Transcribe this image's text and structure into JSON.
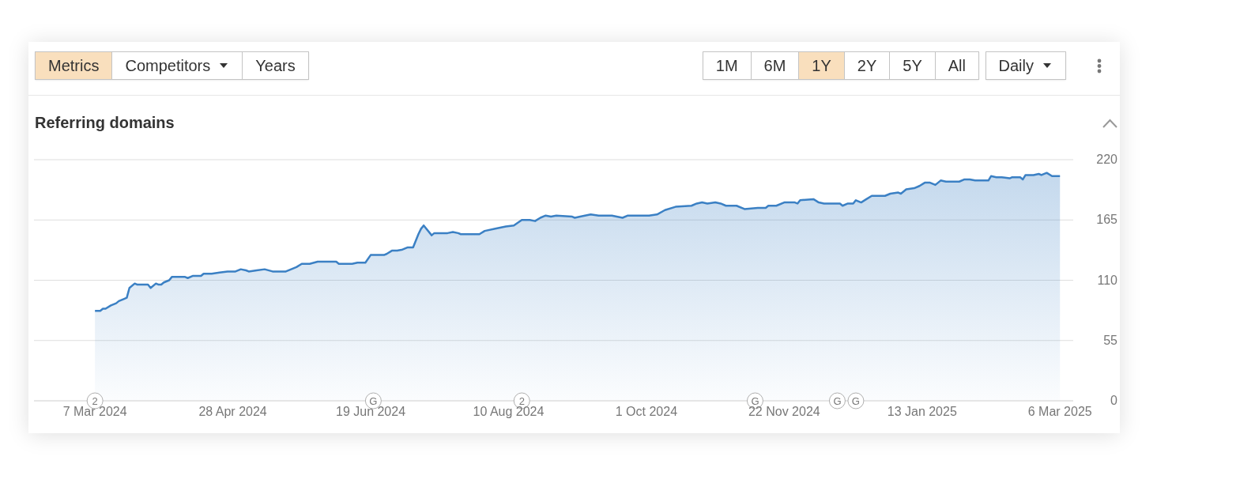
{
  "chart_data": {
    "type": "area",
    "title": "Referring domains",
    "x": [
      "2024-03-07",
      "2024-03-09",
      "2024-03-10",
      "2024-03-11",
      "2024-03-13",
      "2024-03-15",
      "2024-03-16",
      "2024-03-18",
      "2024-03-19",
      "2024-03-20",
      "2024-03-22",
      "2024-03-23",
      "2024-03-27",
      "2024-03-28",
      "2024-03-30",
      "2024-03-31",
      "2024-04-01",
      "2024-04-02",
      "2024-04-04",
      "2024-04-05",
      "2024-04-10",
      "2024-04-11",
      "2024-04-13",
      "2024-04-16",
      "2024-04-17",
      "2024-04-20",
      "2024-04-23",
      "2024-04-26",
      "2024-04-29",
      "2024-05-01",
      "2024-05-03",
      "2024-05-04",
      "2024-05-07",
      "2024-05-10",
      "2024-05-13",
      "2024-05-18",
      "2024-05-22",
      "2024-05-24",
      "2024-05-27",
      "2024-05-30",
      "2024-06-06",
      "2024-06-07",
      "2024-06-12",
      "2024-06-14",
      "2024-06-17",
      "2024-06-19",
      "2024-06-24",
      "2024-06-25",
      "2024-06-27",
      "2024-06-29",
      "2024-07-01",
      "2024-07-03",
      "2024-07-05",
      "2024-07-07",
      "2024-07-08",
      "2024-07-09",
      "2024-07-12",
      "2024-07-13",
      "2024-07-15",
      "2024-07-18",
      "2024-07-20",
      "2024-07-22",
      "2024-07-23",
      "2024-07-30",
      "2024-08-01",
      "2024-08-05",
      "2024-08-09",
      "2024-08-12",
      "2024-08-15",
      "2024-08-18",
      "2024-08-20",
      "2024-08-22",
      "2024-08-24",
      "2024-08-26",
      "2024-08-28",
      "2024-09-03",
      "2024-09-04",
      "2024-09-06",
      "2024-09-10",
      "2024-09-13",
      "2024-09-18",
      "2024-09-22",
      "2024-09-24",
      "2024-09-28",
      "2024-10-02",
      "2024-10-05",
      "2024-10-08",
      "2024-10-12",
      "2024-10-18",
      "2024-10-20",
      "2024-10-22",
      "2024-10-24",
      "2024-10-27",
      "2024-10-29",
      "2024-10-31",
      "2024-11-04",
      "2024-11-07",
      "2024-11-12",
      "2024-11-15",
      "2024-11-16",
      "2024-11-19",
      "2024-11-22",
      "2024-11-26",
      "2024-11-27",
      "2024-11-28",
      "2024-12-03",
      "2024-12-05",
      "2024-12-07",
      "2024-12-13",
      "2024-12-14",
      "2024-12-16",
      "2024-12-18",
      "2024-12-19",
      "2024-12-21",
      "2024-12-23",
      "2024-12-25",
      "2024-12-27",
      "2024-12-30",
      "2025-01-01",
      "2025-01-04",
      "2025-01-05",
      "2025-01-07",
      "2025-01-10",
      "2025-01-12",
      "2025-01-14",
      "2025-01-16",
      "2025-01-18",
      "2025-01-20",
      "2025-01-22",
      "2025-01-27",
      "2025-01-29",
      "2025-01-31",
      "2025-02-02",
      "2025-02-07",
      "2025-02-08",
      "2025-02-10",
      "2025-02-12",
      "2025-02-15",
      "2025-02-16",
      "2025-02-19",
      "2025-02-20",
      "2025-02-21",
      "2025-02-24",
      "2025-02-26",
      "2025-02-27",
      "2025-03-01",
      "2025-03-03",
      "2025-03-06"
    ],
    "series": [
      {
        "color": "#3b80c4",
        "values": [
          82,
          82,
          84,
          84,
          87,
          89,
          91,
          93,
          94,
          103,
          107,
          106,
          106,
          103,
          107,
          106,
          106,
          108,
          110,
          113,
          113,
          112,
          114,
          114,
          116,
          116,
          117,
          118,
          118,
          120,
          119,
          118,
          119,
          120,
          118,
          118,
          122,
          125,
          125,
          127,
          127,
          125,
          125,
          126,
          126,
          133,
          133,
          134,
          137,
          137,
          138,
          140,
          140,
          152,
          157,
          160,
          151,
          153,
          153,
          153,
          154,
          153,
          152,
          152,
          155,
          157,
          159,
          160,
          165,
          165,
          164,
          167,
          169,
          168,
          169,
          168,
          167,
          168,
          170,
          169,
          169,
          167,
          169,
          169,
          169,
          170,
          174,
          177,
          178,
          180,
          181,
          180,
          181,
          180,
          178,
          178,
          175,
          176,
          176,
          178,
          178,
          181,
          181,
          180,
          183,
          184,
          181,
          180,
          180,
          178,
          180,
          180,
          183,
          181,
          184,
          187,
          187,
          187,
          189,
          190,
          189,
          193,
          194,
          196,
          199,
          199,
          197,
          201,
          200,
          200,
          202,
          202,
          201,
          201,
          205,
          204,
          204,
          203,
          204,
          204,
          202,
          206,
          206,
          207,
          206,
          208,
          205,
          205
        ]
      }
    ],
    "xlim": [
      "2024-02-13",
      "2025-03-11"
    ],
    "xticks": [
      {
        "value": "2024-03-07",
        "label": "7 Mar 2024"
      },
      {
        "value": "2024-04-28",
        "label": "28 Apr 2024"
      },
      {
        "value": "2024-06-19",
        "label": "19 Jun 2024"
      },
      {
        "value": "2024-08-10",
        "label": "10 Aug 2024"
      },
      {
        "value": "2024-10-01",
        "label": "1 Oct 2024"
      },
      {
        "value": "2024-11-22",
        "label": "22 Nov 2024"
      },
      {
        "value": "2025-01-13",
        "label": "13 Jan 2025"
      },
      {
        "value": "2025-03-06",
        "label": "6 Mar 2025"
      }
    ],
    "ylim": [
      0,
      220
    ],
    "yticks": [
      0,
      55,
      110,
      165,
      220
    ],
    "grid": "y",
    "annotations": [
      "Metrics",
      "Competitors",
      "Years",
      "1M",
      "6M",
      "1Y",
      "2Y",
      "5Y",
      "All",
      "Daily",
      {
        "text": "2",
        "x": "2024-03-07",
        "y": 0
      },
      {
        "text": "G",
        "x": "2024-06-20",
        "y": 0
      },
      {
        "text": "2",
        "x": "2024-08-15",
        "y": 0
      },
      {
        "text": "G",
        "x": "2024-11-11",
        "y": 0
      },
      {
        "text": "G",
        "x": "2024-12-12",
        "y": 0
      },
      {
        "text": "G",
        "x": "2024-12-19",
        "y": 0
      }
    ]
  }
}
